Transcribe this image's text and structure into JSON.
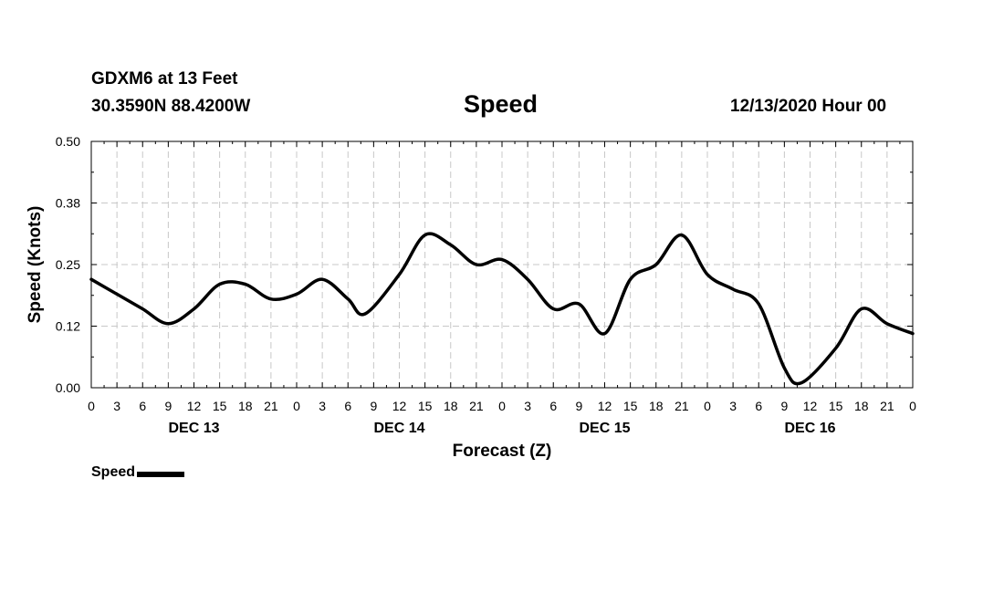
{
  "header": {
    "station": "GDXM6 at 13 Feet",
    "coords": "30.3590N 88.4200W",
    "title": "Speed",
    "run": "12/13/2020 Hour 00"
  },
  "chart_data": {
    "type": "line",
    "title": "Speed",
    "xlabel": "Forecast (Z)",
    "ylabel": "Speed (Knots)",
    "ylim": [
      0,
      0.5
    ],
    "yticks": [
      "0.00",
      "0.12",
      "0.25",
      "0.38",
      "0.50"
    ],
    "xlim": [
      "2020-12-13 00Z",
      "2020-12-17 00Z"
    ],
    "xtick_labels": [
      "0",
      "3",
      "6",
      "9",
      "12",
      "15",
      "18",
      "21",
      "0",
      "3",
      "6",
      "9",
      "12",
      "15",
      "18",
      "21",
      "0",
      "3",
      "6",
      "9",
      "12",
      "15",
      "18",
      "21",
      "0",
      "3",
      "6",
      "9",
      "12",
      "15",
      "18",
      "21",
      "0"
    ],
    "day_labels": [
      "DEC 13",
      "DEC 14",
      "DEC 15",
      "DEC 16"
    ],
    "grid": true,
    "legend_position": "bottom-left",
    "series": [
      {
        "name": "Speed",
        "color": "#000000",
        "x": [
          "2020-12-13 00Z",
          "2020-12-13 03Z",
          "2020-12-13 06Z",
          "2020-12-13 09Z",
          "2020-12-13 12Z",
          "2020-12-13 15Z",
          "2020-12-13 18Z",
          "2020-12-13 21Z",
          "2020-12-14 00Z",
          "2020-12-14 03Z",
          "2020-12-14 06Z",
          "2020-12-14 08Z",
          "2020-12-14 12Z",
          "2020-12-14 15Z",
          "2020-12-14 18Z",
          "2020-12-14 21Z",
          "2020-12-15 00Z",
          "2020-12-15 03Z",
          "2020-12-15 06Z",
          "2020-12-15 09Z",
          "2020-12-15 12Z",
          "2020-12-15 15Z",
          "2020-12-15 18Z",
          "2020-12-15 21Z",
          "2020-12-16 00Z",
          "2020-12-16 03Z",
          "2020-12-16 06Z",
          "2020-12-16 09Z",
          "2020-12-16 11Z",
          "2020-12-16 15Z",
          "2020-12-16 18Z",
          "2020-12-16 21Z",
          "2020-12-17 00Z"
        ],
        "values": [
          0.22,
          0.19,
          0.16,
          0.13,
          0.16,
          0.21,
          0.21,
          0.18,
          0.19,
          0.22,
          0.18,
          0.15,
          0.23,
          0.31,
          0.29,
          0.25,
          0.26,
          0.22,
          0.16,
          0.17,
          0.11,
          0.22,
          0.25,
          0.31,
          0.23,
          0.2,
          0.17,
          0.04,
          0.01,
          0.08,
          0.16,
          0.13,
          0.11
        ]
      }
    ]
  },
  "legend": {
    "label": "Speed"
  }
}
